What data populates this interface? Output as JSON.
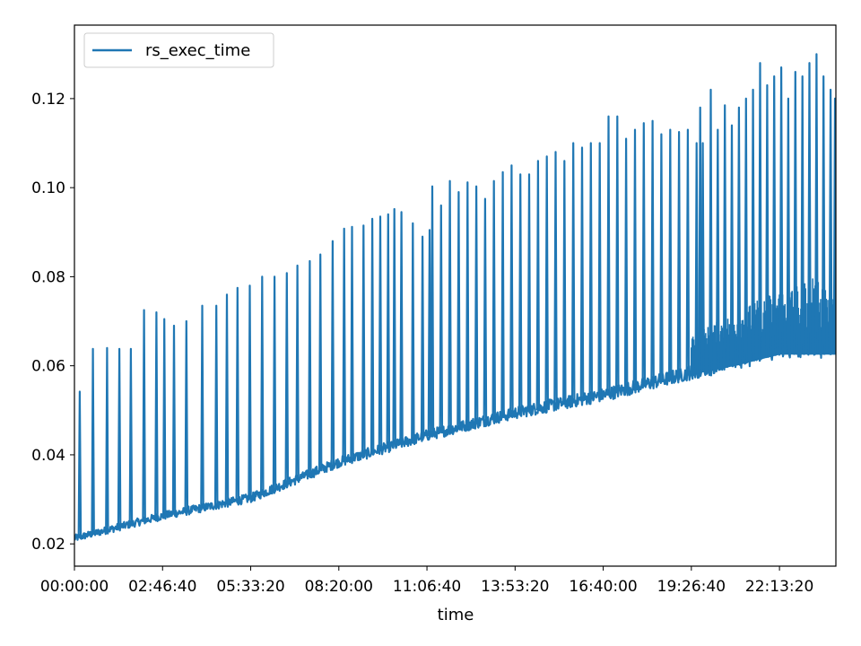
{
  "chart_data": {
    "type": "line",
    "title": "",
    "xlabel": "time",
    "ylabel": "",
    "x_unit": "seconds since 00:00:00",
    "xlim": [
      0,
      86400
    ],
    "ylim": [
      0.015,
      0.1365
    ],
    "grid": false,
    "legend": {
      "placement": "top-left",
      "entries": [
        "rs_exec_time"
      ]
    },
    "x_ticks": [
      {
        "value": 0,
        "label": "00:00:00"
      },
      {
        "value": 10000,
        "label": "02:46:40"
      },
      {
        "value": 20000,
        "label": "05:33:20"
      },
      {
        "value": 30000,
        "label": "08:20:00"
      },
      {
        "value": 40000,
        "label": "11:06:40"
      },
      {
        "value": 50000,
        "label": "13:53:20"
      },
      {
        "value": 60000,
        "label": "16:40:00"
      },
      {
        "value": 70000,
        "label": "19:26:40"
      },
      {
        "value": 80000,
        "label": "22:13:20"
      }
    ],
    "y_ticks": [
      {
        "value": 0.02,
        "label": "0.02"
      },
      {
        "value": 0.04,
        "label": "0.04"
      },
      {
        "value": 0.06,
        "label": "0.06"
      },
      {
        "value": 0.08,
        "label": "0.08"
      },
      {
        "value": 0.1,
        "label": "0.10"
      },
      {
        "value": 0.12,
        "label": "0.12"
      }
    ],
    "series": [
      {
        "name": "rs_exec_time",
        "color": "#1f77b4",
        "baseline": [
          {
            "x": 0,
            "y": 0.021
          },
          {
            "x": 10000,
            "y": 0.026
          },
          {
            "x": 20000,
            "y": 0.03
          },
          {
            "x": 30000,
            "y": 0.038
          },
          {
            "x": 40000,
            "y": 0.044
          },
          {
            "x": 50000,
            "y": 0.049
          },
          {
            "x": 60000,
            "y": 0.053
          },
          {
            "x": 66000,
            "y": 0.056
          },
          {
            "x": 70000,
            "y": 0.058
          },
          {
            "x": 75000,
            "y": 0.06
          },
          {
            "x": 80000,
            "y": 0.0625
          },
          {
            "x": 86400,
            "y": 0.0625
          }
        ],
        "spikes": [
          {
            "x": 600,
            "y": 0.0542
          },
          {
            "x": 2100,
            "y": 0.0638
          },
          {
            "x": 3700,
            "y": 0.064
          },
          {
            "x": 5100,
            "y": 0.0638
          },
          {
            "x": 6400,
            "y": 0.0638
          },
          {
            "x": 7900,
            "y": 0.0725
          },
          {
            "x": 9300,
            "y": 0.072
          },
          {
            "x": 10200,
            "y": 0.0705
          },
          {
            "x": 11300,
            "y": 0.069
          },
          {
            "x": 12700,
            "y": 0.07
          },
          {
            "x": 14500,
            "y": 0.0735
          },
          {
            "x": 16100,
            "y": 0.0735
          },
          {
            "x": 17300,
            "y": 0.076
          },
          {
            "x": 18500,
            "y": 0.0775
          },
          {
            "x": 19900,
            "y": 0.078
          },
          {
            "x": 21300,
            "y": 0.08
          },
          {
            "x": 22700,
            "y": 0.08
          },
          {
            "x": 24100,
            "y": 0.0808
          },
          {
            "x": 25300,
            "y": 0.0825
          },
          {
            "x": 26700,
            "y": 0.0835
          },
          {
            "x": 27900,
            "y": 0.085
          },
          {
            "x": 29300,
            "y": 0.088
          },
          {
            "x": 30600,
            "y": 0.0908
          },
          {
            "x": 31500,
            "y": 0.0912
          },
          {
            "x": 32800,
            "y": 0.0915
          },
          {
            "x": 33800,
            "y": 0.093
          },
          {
            "x": 34700,
            "y": 0.0935
          },
          {
            "x": 35600,
            "y": 0.094
          },
          {
            "x": 36300,
            "y": 0.0952
          },
          {
            "x": 37100,
            "y": 0.0945
          },
          {
            "x": 38400,
            "y": 0.092
          },
          {
            "x": 39500,
            "y": 0.089
          },
          {
            "x": 40300,
            "y": 0.0905
          },
          {
            "x": 40600,
            "y": 0.1003
          },
          {
            "x": 41600,
            "y": 0.096
          },
          {
            "x": 42600,
            "y": 0.1015
          },
          {
            "x": 43600,
            "y": 0.099
          },
          {
            "x": 44600,
            "y": 0.1012
          },
          {
            "x": 45600,
            "y": 0.1003
          },
          {
            "x": 46600,
            "y": 0.0975
          },
          {
            "x": 47600,
            "y": 0.1015
          },
          {
            "x": 48600,
            "y": 0.1035
          },
          {
            "x": 49600,
            "y": 0.105
          },
          {
            "x": 50600,
            "y": 0.103
          },
          {
            "x": 51600,
            "y": 0.103
          },
          {
            "x": 52600,
            "y": 0.106
          },
          {
            "x": 53600,
            "y": 0.107
          },
          {
            "x": 54600,
            "y": 0.108
          },
          {
            "x": 55600,
            "y": 0.106
          },
          {
            "x": 56600,
            "y": 0.11
          },
          {
            "x": 57600,
            "y": 0.109
          },
          {
            "x": 58600,
            "y": 0.11
          },
          {
            "x": 59600,
            "y": 0.11
          },
          {
            "x": 60600,
            "y": 0.116
          },
          {
            "x": 61600,
            "y": 0.116
          },
          {
            "x": 62600,
            "y": 0.111
          },
          {
            "x": 63600,
            "y": 0.113
          },
          {
            "x": 64600,
            "y": 0.1145
          },
          {
            "x": 65600,
            "y": 0.115
          },
          {
            "x": 66600,
            "y": 0.112
          },
          {
            "x": 67600,
            "y": 0.113
          },
          {
            "x": 68600,
            "y": 0.1125
          },
          {
            "x": 69600,
            "y": 0.113
          },
          {
            "x": 70600,
            "y": 0.11
          },
          {
            "x": 71000,
            "y": 0.118
          },
          {
            "x": 71300,
            "y": 0.11
          },
          {
            "x": 72200,
            "y": 0.122
          },
          {
            "x": 73000,
            "y": 0.113
          },
          {
            "x": 73800,
            "y": 0.1185
          },
          {
            "x": 74600,
            "y": 0.114
          },
          {
            "x": 75400,
            "y": 0.118
          },
          {
            "x": 76200,
            "y": 0.12
          },
          {
            "x": 77000,
            "y": 0.122
          },
          {
            "x": 77800,
            "y": 0.128
          },
          {
            "x": 78600,
            "y": 0.123
          },
          {
            "x": 79400,
            "y": 0.125
          },
          {
            "x": 80200,
            "y": 0.127
          },
          {
            "x": 81000,
            "y": 0.12
          },
          {
            "x": 81800,
            "y": 0.126
          },
          {
            "x": 82600,
            "y": 0.125
          },
          {
            "x": 83400,
            "y": 0.128
          },
          {
            "x": 84200,
            "y": 0.13
          },
          {
            "x": 85000,
            "y": 0.125
          },
          {
            "x": 85800,
            "y": 0.122
          },
          {
            "x": 86300,
            "y": 0.12
          }
        ]
      }
    ]
  }
}
